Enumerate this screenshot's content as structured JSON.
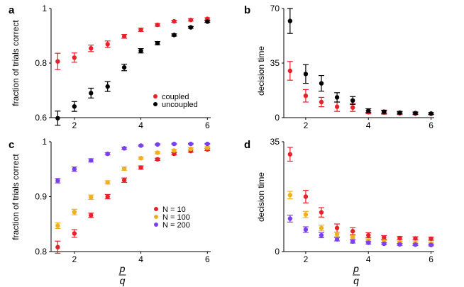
{
  "chart_data": [
    {
      "panel": "a",
      "type": "scatter",
      "ylabel": "fraction of trials correct",
      "xlabel": "",
      "xlim": [
        1.3,
        6.1
      ],
      "ylim": [
        0.6,
        1.0
      ],
      "xticks": [
        2,
        4,
        6
      ],
      "yticks": [
        0.6,
        0.8,
        1.0
      ],
      "ytick_labels": [
        "0.6",
        "0.8",
        "1"
      ],
      "legend_position": "lower-right",
      "series": [
        {
          "name": "coupled",
          "color": "#e8202a",
          "x": [
            1.5,
            2,
            2.5,
            3,
            3.5,
            4,
            4.5,
            5,
            5.5,
            6
          ],
          "y": [
            0.806,
            0.82,
            0.854,
            0.869,
            0.898,
            0.922,
            0.94,
            0.953,
            0.958,
            0.962
          ],
          "err": [
            0.03,
            0.017,
            0.012,
            0.012,
            0.007,
            0.006,
            0.005,
            0.004,
            0.004,
            0.004
          ]
        },
        {
          "name": "uncoupled",
          "color": "#000000",
          "x": [
            1.5,
            2,
            2.5,
            3,
            3.5,
            4,
            4.5,
            5,
            5.5,
            6
          ],
          "y": [
            0.598,
            0.641,
            0.69,
            0.714,
            0.784,
            0.845,
            0.873,
            0.903,
            0.931,
            0.952
          ],
          "err": [
            0.026,
            0.018,
            0.018,
            0.018,
            0.012,
            0.008,
            0.006,
            0.004,
            0.003,
            0.003
          ]
        }
      ]
    },
    {
      "panel": "b",
      "type": "scatter",
      "ylabel": "decision time",
      "xlabel": "",
      "xlim": [
        1.3,
        6.1
      ],
      "ylim": [
        0,
        70
      ],
      "xticks": [
        2,
        4,
        6
      ],
      "yticks": [
        0,
        35,
        70
      ],
      "ytick_labels": [
        "0",
        "35",
        "70"
      ],
      "series": [
        {
          "name": "coupled",
          "color": "#e8202a",
          "x": [
            1.5,
            2,
            2.5,
            3,
            3.5,
            4,
            4.5,
            5,
            5.5,
            6
          ],
          "y": [
            30,
            14,
            10,
            7,
            6.5,
            3.5,
            3.2,
            2.8,
            2.6,
            2.5
          ],
          "err": [
            6,
            4,
            3,
            3,
            2.5,
            1,
            1,
            0.8,
            0.7,
            0.6
          ]
        },
        {
          "name": "uncoupled",
          "color": "#000000",
          "x": [
            1.5,
            2,
            2.5,
            3,
            3.5,
            4,
            4.5,
            5,
            5.5,
            6
          ],
          "y": [
            62,
            28,
            22,
            13,
            11,
            4.5,
            3.8,
            3.2,
            2.9,
            2.6
          ],
          "err": [
            8,
            6,
            5,
            3,
            2.5,
            1.2,
            1,
            0.8,
            0.7,
            0.6
          ]
        }
      ]
    },
    {
      "panel": "c",
      "type": "scatter",
      "ylabel": "fraction of trials correct",
      "xlabel": "p/q",
      "xlim": [
        1.3,
        6.1
      ],
      "ylim": [
        0.8,
        1.0
      ],
      "xticks": [
        2,
        4,
        6
      ],
      "yticks": [
        0.8,
        0.9,
        1.0
      ],
      "ytick_labels": [
        "0.8",
        "0.9",
        "1"
      ],
      "legend_position": "lower-center",
      "series": [
        {
          "name": "N = 10",
          "color": "#e8202a",
          "x": [
            1.5,
            2,
            2.5,
            3,
            3.5,
            4,
            4.5,
            5,
            5.5,
            6
          ],
          "y": [
            0.808,
            0.833,
            0.866,
            0.9,
            0.93,
            0.953,
            0.968,
            0.978,
            0.983,
            0.986
          ],
          "err": [
            0.011,
            0.007,
            0.004,
            0.004,
            0.004,
            0.003,
            0.002,
            0.002,
            0.002,
            0.002
          ]
        },
        {
          "name": "N = 100",
          "color": "#f0b020",
          "x": [
            1.5,
            2,
            2.5,
            3,
            3.5,
            4,
            4.5,
            5,
            5.5,
            6
          ],
          "y": [
            0.847,
            0.872,
            0.899,
            0.926,
            0.951,
            0.97,
            0.98,
            0.984,
            0.987,
            0.989
          ],
          "err": [
            0.005,
            0.005,
            0.004,
            0.003,
            0.003,
            0.002,
            0.002,
            0.002,
            0.002,
            0.002
          ]
        },
        {
          "name": "N = 200",
          "color": "#7a40f0",
          "x": [
            1.5,
            2,
            2.5,
            3,
            3.5,
            4,
            4.5,
            5,
            5.5,
            6
          ],
          "y": [
            0.929,
            0.95,
            0.966,
            0.978,
            0.988,
            0.993,
            0.995,
            0.996,
            0.996,
            0.996
          ],
          "err": [
            0.004,
            0.004,
            0.003,
            0.002,
            0.002,
            0.001,
            0.001,
            0.001,
            0.001,
            0.001
          ]
        }
      ]
    },
    {
      "panel": "d",
      "type": "scatter",
      "ylabel": "decision time",
      "xlabel": "p/q",
      "xlim": [
        1.3,
        6.1
      ],
      "ylim": [
        0,
        35
      ],
      "xticks": [
        2,
        4,
        6
      ],
      "yticks": [
        0,
        35
      ],
      "ytick_labels": [
        "0",
        "35"
      ],
      "series": [
        {
          "name": "N = 10",
          "color": "#e8202a",
          "x": [
            1.5,
            2,
            2.5,
            3,
            3.5,
            4,
            4.5,
            5,
            5.5,
            6
          ],
          "y": [
            31,
            17.5,
            12.5,
            7.5,
            6.5,
            5.2,
            4.5,
            4.3,
            4.2,
            4.1
          ],
          "err": [
            2.2,
            2,
            1.5,
            1.3,
            1.1,
            0.8,
            0.6,
            0.5,
            0.5,
            0.5
          ]
        },
        {
          "name": "N = 100",
          "color": "#f0b020",
          "x": [
            1.5,
            2,
            2.5,
            3,
            3.5,
            4,
            4.5,
            5,
            5.5,
            6
          ],
          "y": [
            18,
            11.8,
            7.5,
            5.5,
            4.5,
            3.5,
            3.2,
            2.9,
            2.7,
            2.6
          ],
          "err": [
            1.2,
            1,
            0.9,
            0.7,
            0.6,
            0.5,
            0.4,
            0.4,
            0.4,
            0.4
          ]
        },
        {
          "name": "N = 200",
          "color": "#7a40f0",
          "x": [
            1.5,
            2,
            2.5,
            3,
            3.5,
            4,
            4.5,
            5,
            5.5,
            6
          ],
          "y": [
            10.5,
            7,
            5.2,
            3.9,
            3.2,
            2.8,
            2.5,
            2.3,
            2.2,
            2.1
          ],
          "err": [
            1.1,
            0.9,
            0.8,
            0.5,
            0.5,
            0.4,
            0.3,
            0.3,
            0.3,
            0.3
          ]
        }
      ]
    }
  ]
}
